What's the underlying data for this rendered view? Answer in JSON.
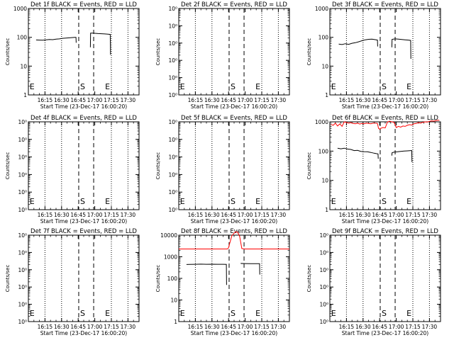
{
  "window": {
    "background": "#ffffff"
  },
  "colors": {
    "axes": "#000000",
    "events": "#000000",
    "lld": "#ff0000",
    "markers": "#000000"
  },
  "x_ticks": [
    "16:15",
    "16:30",
    "16:45",
    "17:00",
    "17:15",
    "17:30"
  ],
  "x_tick_minutes": [
    975,
    990,
    1005,
    1020,
    1035,
    1050
  ],
  "xlim_minutes": [
    960,
    1060
  ],
  "xlabel": "Start Time (23-Dec-17 16:00:20)",
  "ylabel": "Counts/sec",
  "y_tick_labels": {
    "t1": [
      "1",
      "10",
      "100",
      "1000"
    ],
    "t2": [
      "10⁰",
      "10⁰",
      "10⁰",
      "10⁰",
      "10⁰",
      "10⁰"
    ],
    "t3": [
      "1",
      "10",
      "100",
      "1000"
    ],
    "t4": [
      "10⁰",
      "10⁰",
      "10⁰",
      "10⁰",
      "10⁰",
      "10⁰"
    ],
    "t5": [
      "10⁰",
      "10⁰",
      "10⁰",
      "10⁰",
      "10⁰",
      "10⁰"
    ],
    "t6": [
      "1",
      "10",
      "100",
      "1000"
    ],
    "t7": [
      "10⁰",
      "10⁰",
      "10⁰",
      "10⁰",
      "10⁰",
      "10⁰"
    ],
    "t8": [
      "1",
      "10",
      "100",
      "1000",
      "10000"
    ],
    "t9": [
      "10⁰",
      "10⁰",
      "10⁰",
      "10⁰",
      "10⁰",
      "10⁰"
    ]
  },
  "marker_labels": {
    "start": "S",
    "end": "E",
    "edge": "E"
  },
  "chart_data": [
    {
      "type": "line",
      "title": "Det 1f BLACK = Events, RED = LLD",
      "yscale": "log",
      "ylim": [
        1,
        1000
      ],
      "yticks": "t1",
      "dummy": false,
      "dotted_minutes": [
        975,
        990,
        1035,
        1050
      ],
      "dashed_minutes": [
        1005.5,
        1019
      ],
      "markers": [
        {
          "label": "edge",
          "minute": 960.5
        },
        {
          "label": "start",
          "minute": 1005.5
        },
        {
          "label": "end",
          "minute": 1028
        }
      ],
      "series": [
        {
          "color": "events",
          "x": [
            967,
            970,
            973,
            976,
            979,
            982,
            985,
            988,
            991,
            994,
            997,
            1000,
            1002,
            1003,
            1003.2
          ],
          "y": [
            81,
            80,
            79,
            82,
            84,
            83,
            86,
            88,
            92,
            94,
            96,
            98,
            100,
            100,
            65
          ]
        },
        {
          "color": "events",
          "x": [
            1016,
            1016.2,
            1018,
            1020,
            1023,
            1026,
            1029,
            1032,
            1034,
            1034.2
          ],
          "y": [
            45,
            140,
            140,
            138,
            135,
            133,
            131,
            128,
            126,
            25
          ]
        }
      ]
    },
    {
      "type": "line",
      "title": "Det 2f BLACK = Events, RED = LLD",
      "yscale": "log",
      "ylim": [
        1,
        100000
      ],
      "yticks": "t2",
      "dummy": true,
      "dotted_minutes": [
        975,
        990,
        1035,
        1050
      ],
      "dashed_minutes": [
        1005.5,
        1019
      ],
      "markers": [
        {
          "label": "edge",
          "minute": 960.5
        },
        {
          "label": "start",
          "minute": 1005.5
        },
        {
          "label": "end",
          "minute": 1028
        }
      ],
      "series": []
    },
    {
      "type": "line",
      "title": "Det 3f BLACK = Events, RED = LLD",
      "yscale": "log",
      "ylim": [
        1,
        1000
      ],
      "yticks": "t3",
      "dummy": false,
      "dotted_minutes": [
        975,
        990,
        1035,
        1050
      ],
      "dashed_minutes": [
        1005.5,
        1019
      ],
      "markers": [
        {
          "label": "edge",
          "minute": 960.5
        },
        {
          "label": "start",
          "minute": 1005.5
        },
        {
          "label": "end",
          "minute": 1028
        }
      ],
      "series": [
        {
          "color": "events",
          "x": [
            968,
            971,
            974,
            977,
            980,
            983,
            986,
            989,
            992,
            995,
            998,
            1001,
            1003,
            1003.2
          ],
          "y": [
            58,
            56,
            60,
            57,
            62,
            65,
            70,
            76,
            82,
            85,
            86,
            83,
            80,
            48
          ]
        },
        {
          "color": "events",
          "x": [
            1016,
            1016.2,
            1019,
            1022,
            1025,
            1028,
            1031,
            1033,
            1033.2
          ],
          "y": [
            45,
            85,
            88,
            86,
            84,
            82,
            80,
            78,
            18
          ]
        }
      ]
    },
    {
      "type": "line",
      "title": "Det 4f BLACK = Events, RED = LLD",
      "yscale": "log",
      "ylim": [
        1,
        100000
      ],
      "yticks": "t4",
      "dummy": true,
      "dotted_minutes": [
        975,
        990,
        1035,
        1050
      ],
      "dashed_minutes": [
        1005.5,
        1019
      ],
      "markers": [
        {
          "label": "edge",
          "minute": 960.5
        },
        {
          "label": "start",
          "minute": 1005.5
        },
        {
          "label": "end",
          "minute": 1028
        }
      ],
      "series": []
    },
    {
      "type": "line",
      "title": "Det 5f BLACK = Events, RED = LLD",
      "yscale": "log",
      "ylim": [
        1,
        100000
      ],
      "yticks": "t5",
      "dummy": true,
      "dotted_minutes": [
        975,
        990,
        1035,
        1050
      ],
      "dashed_minutes": [
        1005.5,
        1019
      ],
      "markers": [
        {
          "label": "edge",
          "minute": 960.5
        },
        {
          "label": "start",
          "minute": 1005.5
        },
        {
          "label": "end",
          "minute": 1028
        }
      ],
      "series": []
    },
    {
      "type": "line",
      "title": "Det 6f BLACK = Events, RED = LLD",
      "yscale": "log",
      "ylim": [
        1,
        1000
      ],
      "yticks": "t6",
      "dummy": false,
      "dotted_minutes": [
        975,
        990,
        1035,
        1050
      ],
      "dashed_minutes": [
        1005.5,
        1019
      ],
      "markers": [
        {
          "label": "edge",
          "minute": 960.5
        },
        {
          "label": "start",
          "minute": 1005.5
        },
        {
          "label": "end",
          "minute": 1028
        }
      ],
      "series": [
        {
          "color": "lld",
          "x": [
            961,
            963,
            965,
            967,
            969,
            971,
            973,
            975,
            977,
            979,
            981,
            983,
            985,
            987,
            989,
            991,
            993,
            995,
            997,
            999,
            1001,
            1003,
            1004,
            1005,
            1006,
            1008,
            1010,
            1011,
            1012,
            1014,
            1016,
            1018,
            1020,
            1022,
            1024,
            1026,
            1028,
            1030,
            1032,
            1034,
            1036,
            1038,
            1040,
            1042,
            1044,
            1046,
            1048,
            1050,
            1052,
            1054,
            1056,
            1058,
            1059
          ],
          "y": [
            820,
            760,
            900,
            720,
            850,
            700,
            1000,
            950,
            900,
            940,
            880,
            860,
            900,
            840,
            880,
            860,
            900,
            880,
            860,
            900,
            900,
            880,
            600,
            560,
            600,
            640,
            620,
            780,
            980,
            1050,
            1000,
            960,
            640,
            700,
            660,
            720,
            700,
            760,
            800,
            780,
            860,
            880,
            940,
            900,
            960,
            1000,
            980,
            1040,
            1080,
            1060,
            1100,
            1140,
            1100
          ]
        },
        {
          "color": "events",
          "x": [
            967,
            970,
            973,
            976,
            979,
            982,
            985,
            988,
            991,
            994,
            997,
            1000,
            1002,
            1003.5,
            1003.7
          ],
          "y": [
            125,
            120,
            126,
            118,
            114,
            104,
            106,
            98,
            96,
            95,
            90,
            85,
            82,
            80,
            55
          ]
        },
        {
          "color": "events",
          "x": [
            1016,
            1016.2,
            1018,
            1021,
            1024,
            1027,
            1030,
            1033,
            1034,
            1034.2
          ],
          "y": [
            70,
            88,
            92,
            95,
            98,
            100,
            102,
            104,
            105,
            42
          ]
        }
      ]
    },
    {
      "type": "line",
      "title": "Det 7f BLACK = Events, RED = LLD",
      "yscale": "log",
      "ylim": [
        1,
        100000
      ],
      "yticks": "t7",
      "dummy": true,
      "dotted_minutes": [
        975,
        990,
        1035,
        1050
      ],
      "dashed_minutes": [
        1005.5,
        1019
      ],
      "markers": [
        {
          "label": "edge",
          "minute": 960.5
        },
        {
          "label": "start",
          "minute": 1005.5
        },
        {
          "label": "end",
          "minute": 1028
        }
      ],
      "series": []
    },
    {
      "type": "line",
      "title": "Det 8f BLACK = Events, RED = LLD",
      "yscale": "log",
      "ylim": [
        1,
        10000
      ],
      "yticks": "t8",
      "dummy": false,
      "dotted_minutes": [
        975,
        990,
        1035,
        1050
      ],
      "dashed_minutes": [
        1005.5,
        1019
      ],
      "markers": [
        {
          "label": "edge",
          "minute": 960.5
        },
        {
          "label": "start",
          "minute": 1005.5
        },
        {
          "label": "end",
          "minute": 1028
        }
      ],
      "series": [
        {
          "color": "lld",
          "x": [
            960,
            970,
            980,
            990,
            1000,
            1004,
            1005,
            1006,
            1008,
            1011,
            1013,
            1015,
            1016,
            1017,
            1020,
            1030,
            1040,
            1050,
            1060
          ],
          "y": [
            2300,
            2300,
            2300,
            2300,
            2300,
            2300,
            2600,
            4200,
            9500,
            14000,
            14000,
            9000,
            4500,
            2400,
            2300,
            2300,
            2300,
            2300,
            2300
          ]
        },
        {
          "color": "events",
          "x": [
            967,
            970,
            975,
            980,
            985,
            990,
            995,
            1000,
            1003,
            1003.2
          ],
          "y": [
            440,
            445,
            450,
            455,
            450,
            452,
            450,
            448,
            445,
            50
          ]
        },
        {
          "color": "events",
          "x": [
            1016,
            1016.2,
            1020,
            1025,
            1030,
            1033,
            1033.2
          ],
          "y": [
            480,
            490,
            485,
            482,
            480,
            478,
            150
          ]
        }
      ]
    },
    {
      "type": "line",
      "title": "Det 9f BLACK = Events, RED = LLD",
      "yscale": "log",
      "ylim": [
        1,
        100000
      ],
      "yticks": "t9",
      "dummy": true,
      "dotted_minutes": [
        975,
        990,
        1035,
        1050
      ],
      "dashed_minutes": [
        1005.5,
        1019
      ],
      "markers": [
        {
          "label": "edge",
          "minute": 960.5
        },
        {
          "label": "start",
          "minute": 1005.5
        },
        {
          "label": "end",
          "minute": 1028
        }
      ],
      "series": []
    }
  ]
}
